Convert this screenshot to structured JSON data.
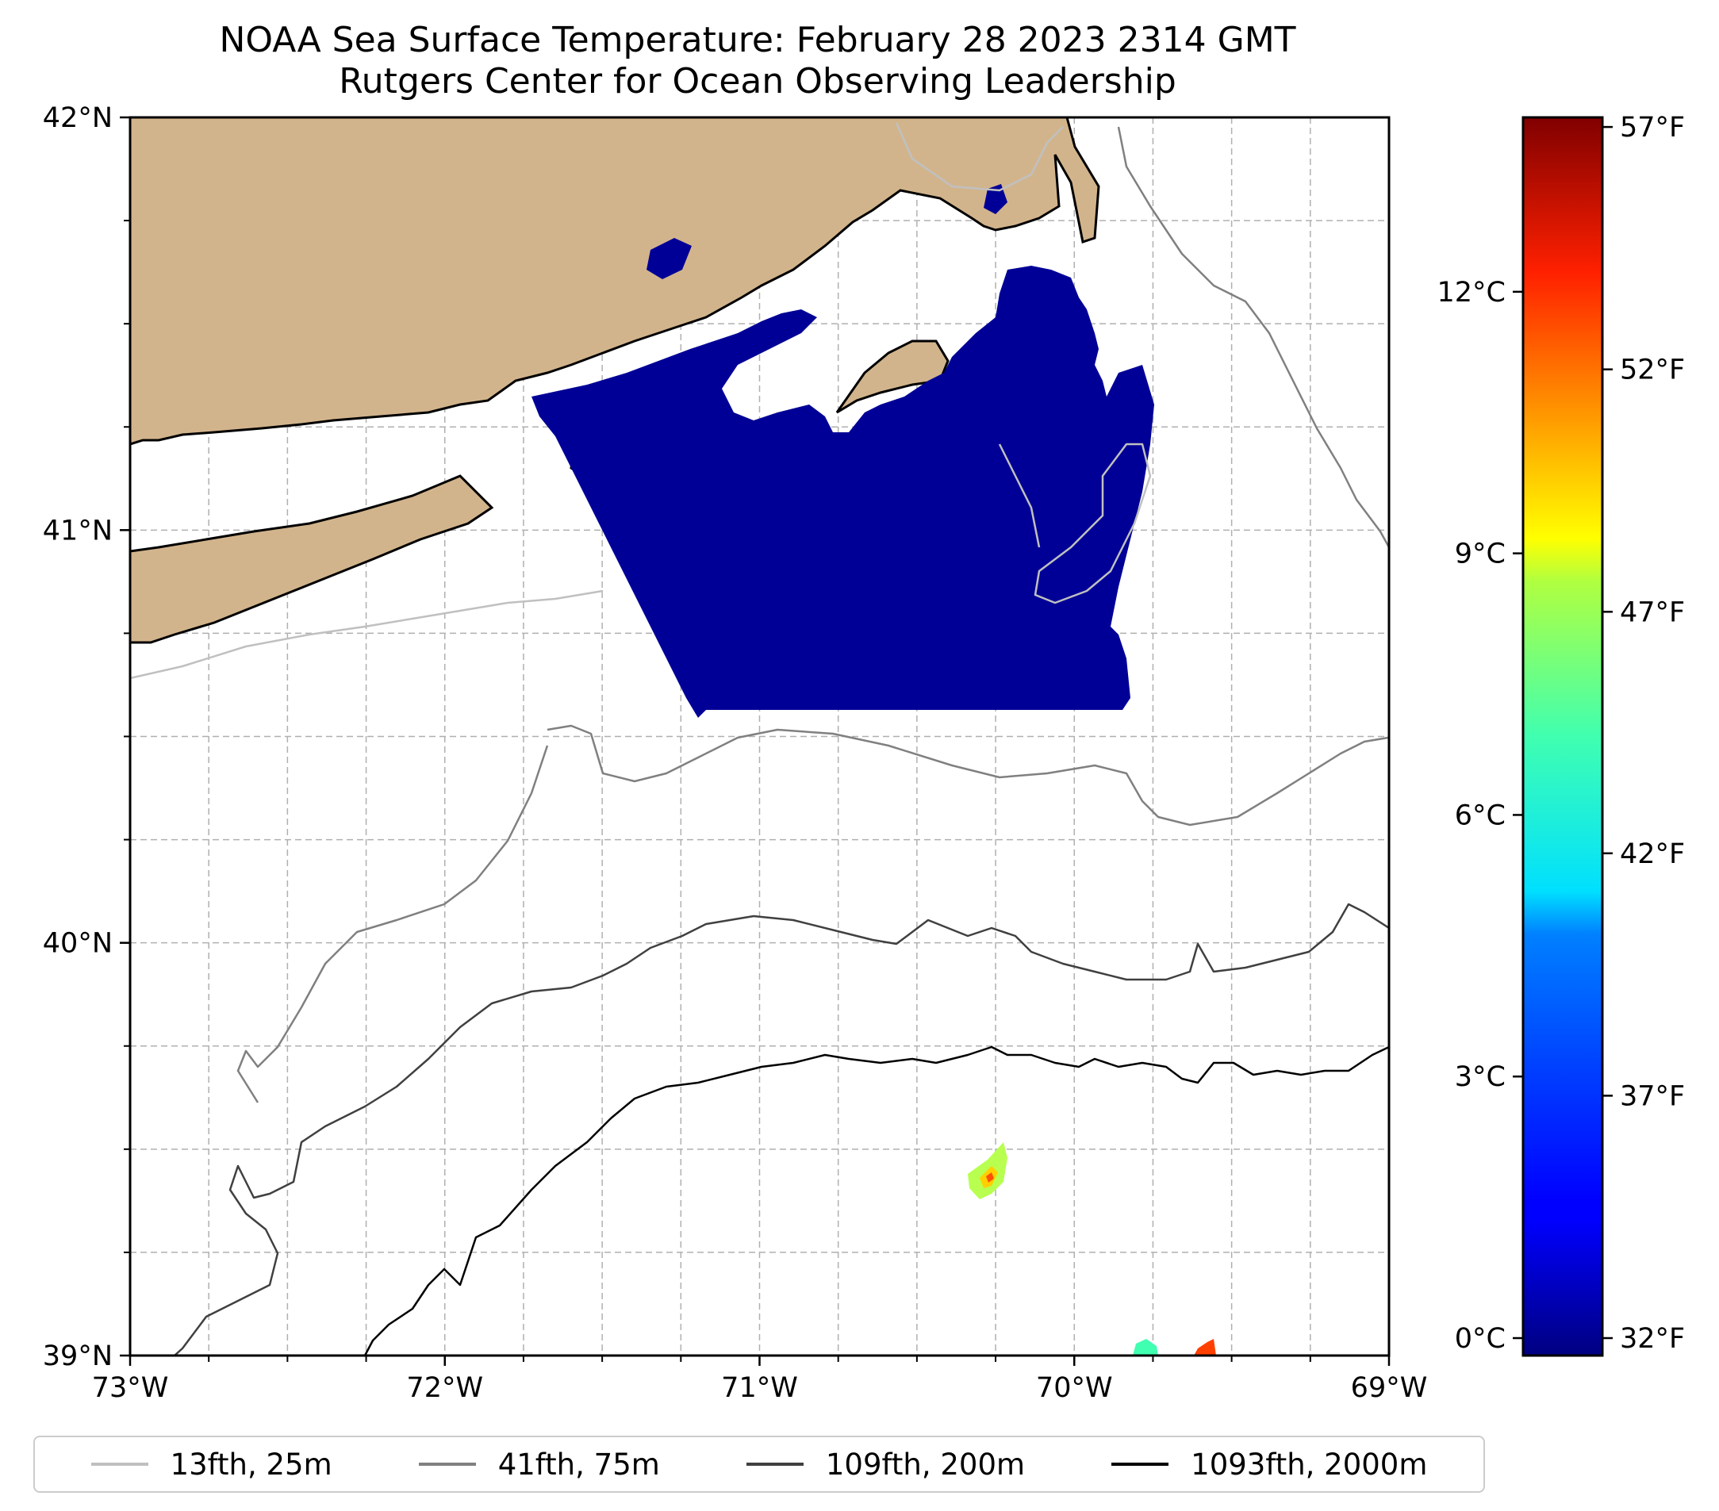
{
  "title": {
    "line1": "NOAA Sea Surface Temperature: February 28 2023 2314 GMT",
    "line2": "Rutgers Center for Ocean Observing Leadership"
  },
  "axes": {
    "lon_range": [
      -73,
      -69
    ],
    "lat_range": [
      39,
      42
    ],
    "x_ticks": [
      {
        "lon": -73,
        "label": "73°W"
      },
      {
        "lon": -72,
        "label": "72°W"
      },
      {
        "lon": -71,
        "label": "71°W"
      },
      {
        "lon": -70,
        "label": "70°W"
      },
      {
        "lon": -69,
        "label": "69°W"
      }
    ],
    "y_ticks": [
      {
        "lat": 42,
        "label": "42°N"
      },
      {
        "lat": 41,
        "label": "41°N"
      },
      {
        "lat": 40,
        "label": "40°N"
      },
      {
        "lat": 39,
        "label": "39°N"
      }
    ],
    "grid": "dashed, every 0.25°"
  },
  "colorbar": {
    "colormap": "jet",
    "range_c": [
      -0.2,
      14
    ],
    "celsius_ticks": [
      {
        "value": 0,
        "label": "0°C"
      },
      {
        "value": 3,
        "label": "3°C"
      },
      {
        "value": 6,
        "label": "6°C"
      },
      {
        "value": 9,
        "label": "9°C"
      },
      {
        "value": 12,
        "label": "12°C"
      }
    ],
    "fahrenheit_ticks": [
      {
        "value_c": 0,
        "label": "32°F"
      },
      {
        "value_c": 2.78,
        "label": "37°F"
      },
      {
        "value_c": 5.56,
        "label": "42°F"
      },
      {
        "value_c": 8.33,
        "label": "47°F"
      },
      {
        "value_c": 11.11,
        "label": "52°F"
      },
      {
        "value_c": 13.89,
        "label": "57°F"
      }
    ]
  },
  "legend": [
    {
      "label": "13fth, 25m",
      "color": "#c0c0c0"
    },
    {
      "label": "41fth, 75m",
      "color": "#808080"
    },
    {
      "label": "109fth, 200m",
      "color": "#404040"
    },
    {
      "label": "1093fth, 2000m",
      "color": "#000000"
    }
  ],
  "colors": {
    "land": "#d2b48c",
    "sst_cold": "#000096",
    "grid": "#b0b0b0"
  },
  "sst_patches": [
    {
      "region": "southern New England shelf",
      "approx_temp_c": 0.5
    },
    {
      "region": "offshore eddy near 39.4N 70.3W",
      "approx_temp_c": 9.5
    },
    {
      "region": "southern edge near 69.8W",
      "approx_temp_c": 7
    },
    {
      "region": "southern edge near 69.55W",
      "approx_temp_c": 12
    }
  ]
}
